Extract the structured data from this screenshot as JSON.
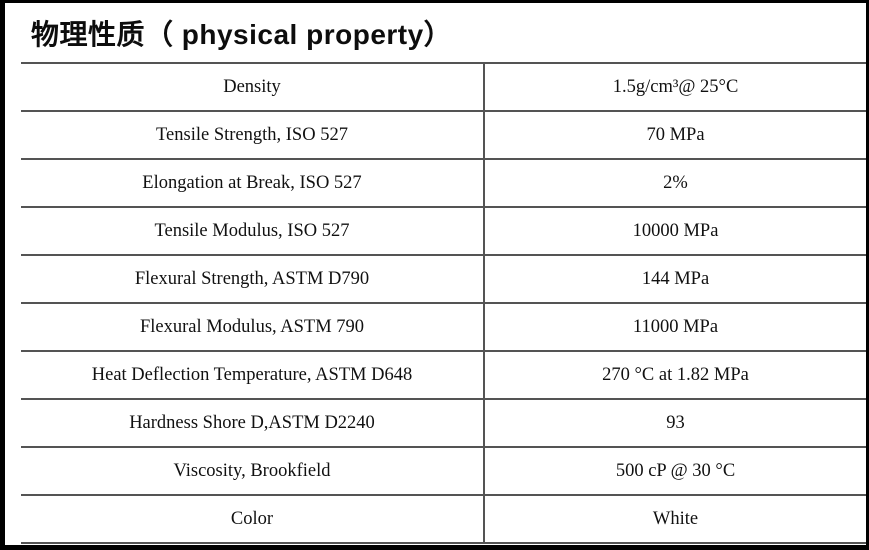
{
  "title": "物理性质（ physical property）",
  "colors": {
    "frame": "#000000",
    "grid_line": "#545454",
    "text": "#111111",
    "background": "#ffffff"
  },
  "table": {
    "columns": [
      "property",
      "value"
    ],
    "rows": [
      {
        "property": "Density",
        "value": "1.5g/cm³@ 25°C"
      },
      {
        "property": "Tensile Strength, ISO 527",
        "value": "70 MPa"
      },
      {
        "property": "Elongation at Break, ISO 527",
        "value": "2%"
      },
      {
        "property": "Tensile Modulus, ISO 527",
        "value": "10000 MPa"
      },
      {
        "property": "Flexural Strength, ASTM D790",
        "value": "144 MPa"
      },
      {
        "property": "Flexural Modulus, ASTM 790",
        "value": "11000 MPa"
      },
      {
        "property": "Heat Deflection Temperature, ASTM D648",
        "value": "270 °C at 1.82 MPa"
      },
      {
        "property": "Hardness Shore D,ASTM D2240",
        "value": "93"
      },
      {
        "property": "Viscosity, Brookfield",
        "value": "500 cP @ 30 °C"
      },
      {
        "property": "Color",
        "value": "White"
      }
    ]
  }
}
